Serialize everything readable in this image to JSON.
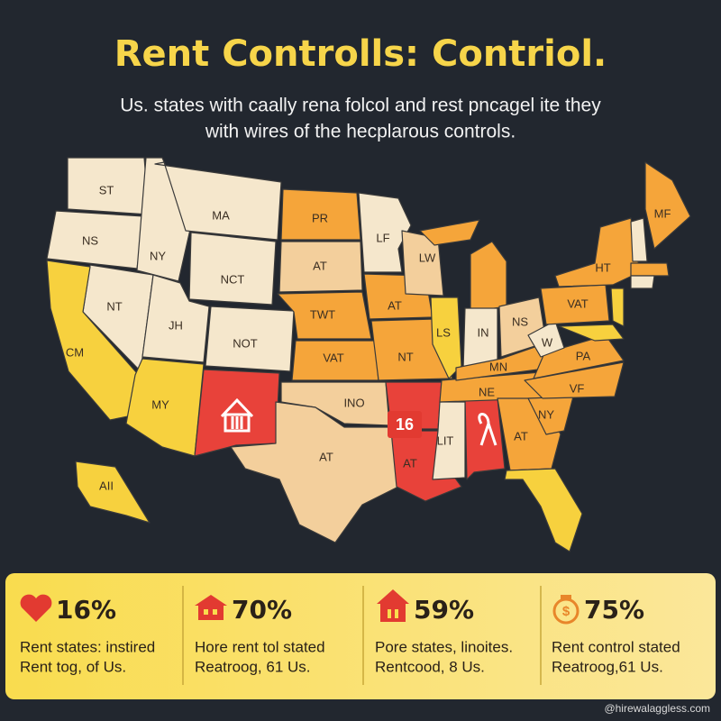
{
  "header": {
    "title": "Rent Controlls: Contriol.",
    "subtitle": [
      "Us. states with caally rena folcol and rest pncagel ite they",
      "with wires of the hecplarous controls."
    ]
  },
  "map": {
    "labels": [
      "ST",
      "NS",
      "NY",
      "MA",
      "NCT",
      "NT",
      "CM",
      "JH",
      "NOT",
      "MY",
      "PR",
      "AT",
      "TWT",
      "VAT",
      "INO",
      "AT",
      "LF",
      "AT",
      "LW",
      "NT",
      "16",
      "AT",
      "LS",
      "IN",
      "NS",
      "LIT",
      "NE",
      "MN",
      "AT",
      "NY",
      "VF",
      "PA",
      "W",
      "VAT",
      "HT",
      "MF",
      "AII"
    ]
  },
  "stats": [
    {
      "value": "16%",
      "lines": [
        "Rent states: instired",
        "Rent tog, of Us."
      ]
    },
    {
      "value": "70%",
      "lines": [
        "Hore rent tol stated",
        "Reatroog, 61 Us."
      ]
    },
    {
      "value": "59%",
      "lines": [
        "Pore states, linoites.",
        "Rentcood, 8 Us."
      ]
    },
    {
      "value": "75%",
      "lines": [
        "Rent control stated",
        "Reatroog,61 Us."
      ]
    }
  ],
  "footer": {
    "credit": "@hirewalaggless.com"
  }
}
